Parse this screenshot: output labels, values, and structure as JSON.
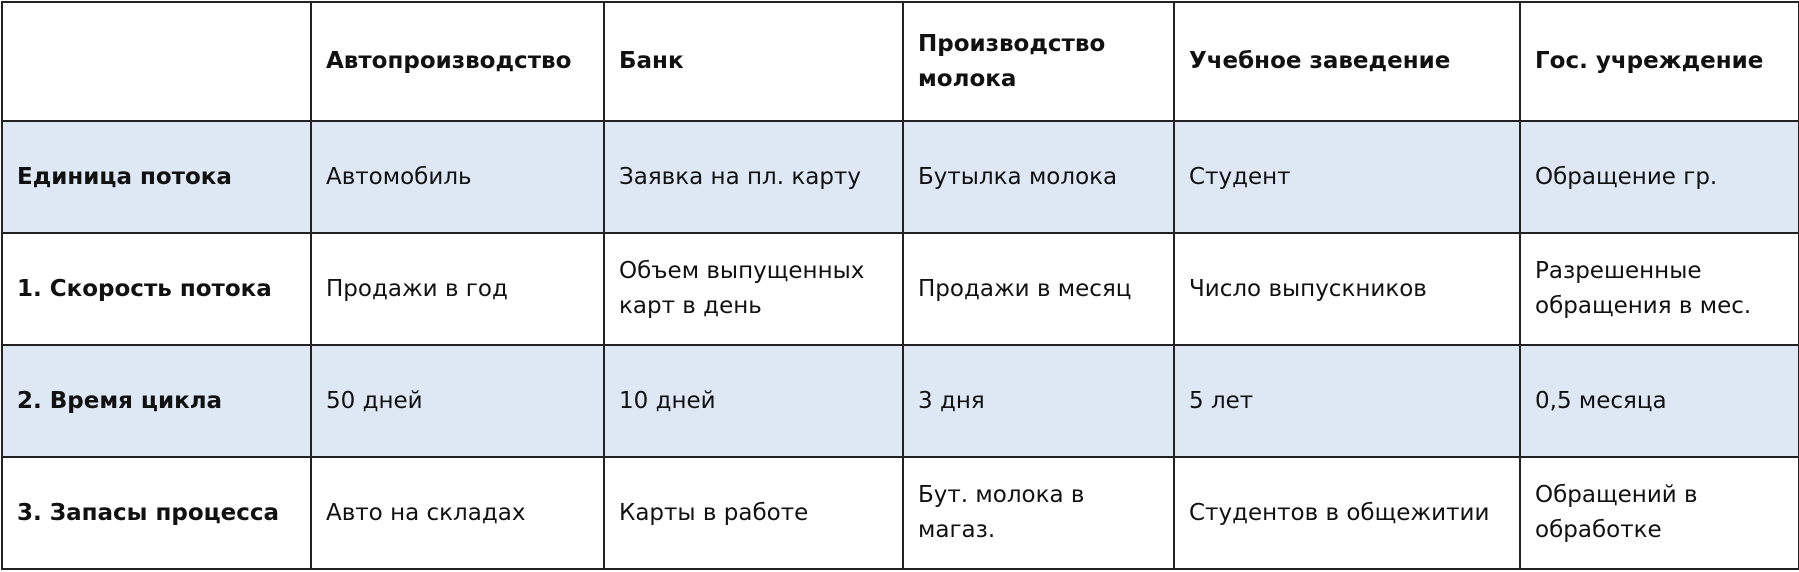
{
  "table": {
    "columns": [
      "Автопроизводство",
      "Банк",
      "Производство молока",
      "Учебное заведение",
      "Гос. учреждение"
    ],
    "rows": [
      {
        "label": "Единица потока",
        "cells": [
          "Автомобиль",
          "Заявка на пл. карту",
          "Бутылка молока",
          "Студент",
          "Обращение гр."
        ]
      },
      {
        "label": "1. Скорость потока",
        "cells": [
          "Продажи в год",
          "Объем выпущенных карт в день",
          "Продажи в месяц",
          "Число выпускников",
          "Разрешенные обращения в мес."
        ]
      },
      {
        "label": "2. Время цикла",
        "cells": [
          "50 дней",
          "10 дней",
          "3 дня",
          "5 лет",
          "0,5 месяца"
        ]
      },
      {
        "label": "3. Запасы процесса",
        "cells": [
          "Авто на складах",
          "Карты в работе",
          "Бут. молока в магаз.",
          "Студентов в общежитии",
          "Обращений в обработке"
        ]
      }
    ]
  }
}
